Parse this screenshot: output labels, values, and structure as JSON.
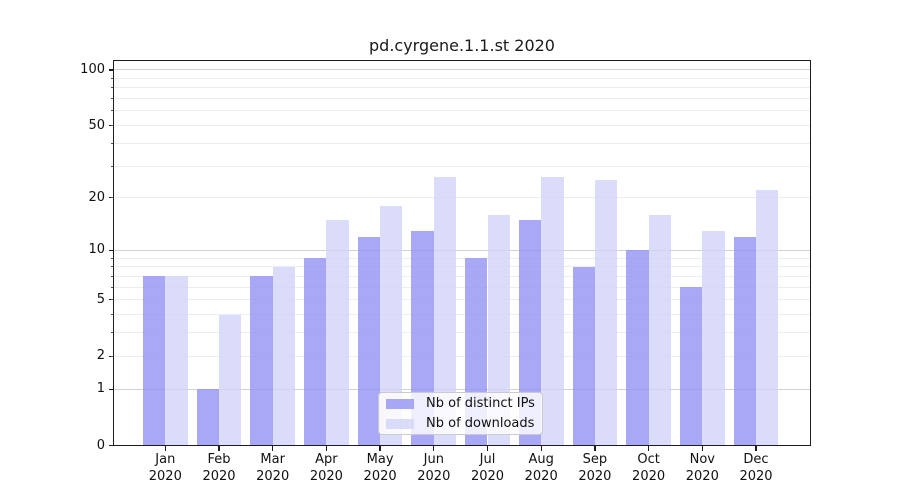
{
  "title": "pd.cyrgene.1.1.st 2020",
  "chart_data": {
    "type": "bar",
    "title": "pd.cyrgene.1.1.st 2020",
    "xlabel": "",
    "ylabel": "",
    "year": "2020",
    "months": [
      "Jan",
      "Feb",
      "Mar",
      "Apr",
      "May",
      "Jun",
      "Jul",
      "Aug",
      "Sep",
      "Oct",
      "Nov",
      "Dec"
    ],
    "categories": [
      "Jan 2020",
      "Feb 2020",
      "Mar 2020",
      "Apr 2020",
      "May 2020",
      "Jun 2020",
      "Jul 2020",
      "Aug 2020",
      "Sep 2020",
      "Oct 2020",
      "Nov 2020",
      "Dec 2020"
    ],
    "series": [
      {
        "name": "Nb of distinct IPs",
        "color_hex": "#a9a8f6",
        "color_css": "rgba(148,146,244,0.8)",
        "values": [
          7,
          1,
          7,
          9,
          12,
          13,
          9,
          15,
          8,
          10,
          6,
          12
        ]
      },
      {
        "name": "Nb of downloads",
        "color_hex": "#dbdbfa",
        "color_css": "rgba(210,210,249,0.8)",
        "values": [
          7,
          4,
          8,
          15,
          18,
          26,
          16,
          26,
          25,
          16,
          13,
          22
        ]
      }
    ],
    "yscale": "log1p",
    "ylim": [
      0,
      114
    ],
    "ytick_values": [
      0,
      1,
      2,
      5,
      10,
      20,
      50,
      100
    ],
    "major_grid_values": [
      1,
      10,
      100
    ],
    "minor_grid_values": [
      2,
      3,
      4,
      5,
      6,
      7,
      8,
      9,
      20,
      30,
      40,
      50,
      60,
      70,
      80,
      90
    ],
    "grid": true,
    "legend_position": "lower center"
  }
}
